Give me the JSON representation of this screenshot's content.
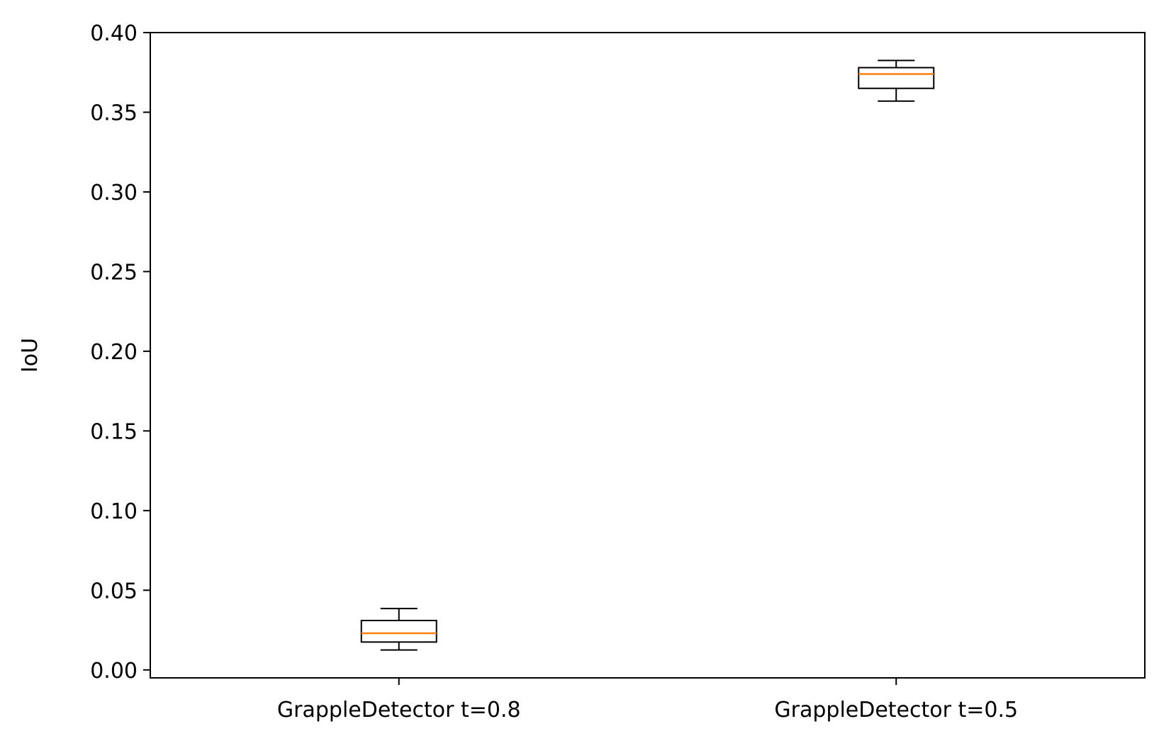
{
  "chart_data": {
    "type": "box",
    "title": "",
    "xlabel": "",
    "ylabel": "IoU",
    "ylim": [
      -0.005,
      0.4
    ],
    "yticks": [
      0.0,
      0.05,
      0.1,
      0.15,
      0.2,
      0.25,
      0.3,
      0.35,
      0.4
    ],
    "ytick_labels": [
      "0.00",
      "0.05",
      "0.10",
      "0.15",
      "0.20",
      "0.25",
      "0.30",
      "0.35",
      "0.40"
    ],
    "categories": [
      "GrappleDetector t=0.8",
      "GrappleDetector t=0.5"
    ],
    "boxes": [
      {
        "whisker_low": 0.0125,
        "q1": 0.0175,
        "median": 0.023,
        "q3": 0.031,
        "whisker_high": 0.0385
      },
      {
        "whisker_low": 0.357,
        "q1": 0.365,
        "median": 0.374,
        "q3": 0.378,
        "whisker_high": 0.3825
      }
    ],
    "grid": false,
    "colors": {
      "box": "#000000",
      "median": "#ff7f0e",
      "axes": "#000000"
    }
  }
}
